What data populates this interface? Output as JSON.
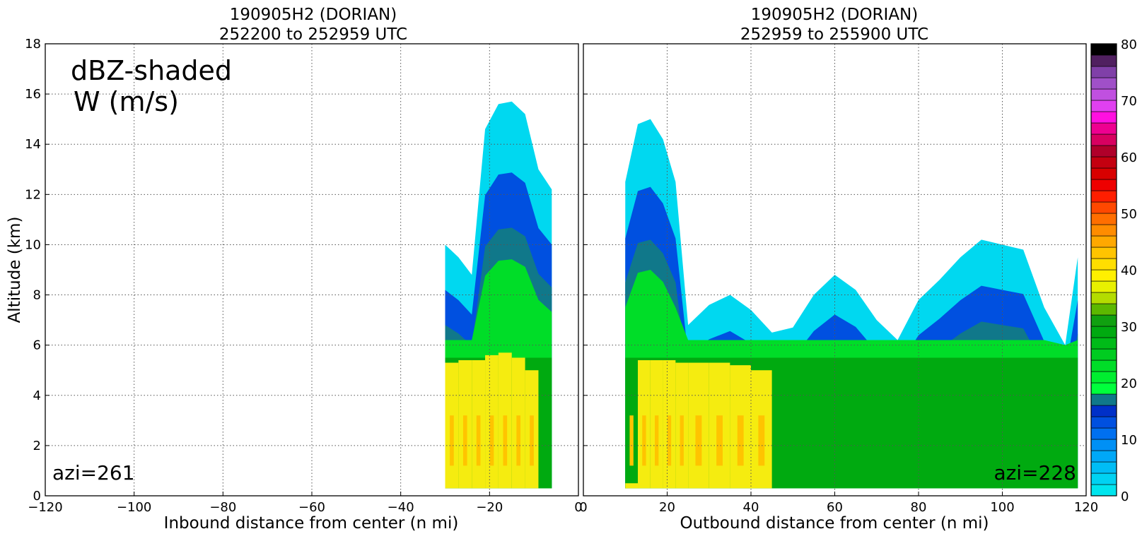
{
  "chart_data": [
    {
      "type": "heatmap",
      "title": [
        "190905H2 (DORIAN)",
        "252200 to 252959 UTC"
      ],
      "xlabel": "Inbound distance from center (n mi)",
      "ylabel": "Altitude (km)",
      "xlim": [
        -120,
        0
      ],
      "ylim": [
        0,
        18
      ],
      "xticks": [
        -120,
        -100,
        -80,
        -60,
        -40,
        -20,
        0
      ],
      "yticks": [
        0,
        2,
        4,
        6,
        8,
        10,
        12,
        14,
        16,
        18
      ],
      "annotations": [
        "dBZ-shaded",
        "W (m/s)",
        "azi=261"
      ],
      "grid": true,
      "contour_label": "1",
      "reflectivity_profile": [
        {
          "x": -30,
          "top": 10.0,
          "bright_top": 5.3
        },
        {
          "x": -27,
          "top": 9.5,
          "bright_top": 5.4
        },
        {
          "x": -24,
          "top": 8.8,
          "bright_top": 5.4
        },
        {
          "x": -21,
          "top": 14.6,
          "bright_top": 5.6
        },
        {
          "x": -18,
          "top": 15.6,
          "bright_top": 5.7
        },
        {
          "x": -15,
          "top": 15.7,
          "bright_top": 5.5
        },
        {
          "x": -12,
          "top": 15.2,
          "bright_top": 5.0
        },
        {
          "x": -9,
          "top": 13.0,
          "bright_top": 0.0
        },
        {
          "x": -6,
          "top": 12.2,
          "bright_top": 0.0
        }
      ]
    },
    {
      "type": "heatmap",
      "title": [
        "190905H2 (DORIAN)",
        "252959 to 255900 UTC"
      ],
      "xlabel": "Outbound distance from center (n mi)",
      "xlim": [
        0,
        120
      ],
      "ylim": [
        0,
        18
      ],
      "xticks": [
        0,
        20,
        40,
        60,
        80,
        100,
        120
      ],
      "annotations": [
        "azi=228"
      ],
      "grid": true,
      "contour_label": "1",
      "reflectivity_profile": [
        {
          "x": 10,
          "top": 12.5,
          "bright_top": 0.5
        },
        {
          "x": 13,
          "top": 14.8,
          "bright_top": 5.4
        },
        {
          "x": 16,
          "top": 15.0,
          "bright_top": 5.4
        },
        {
          "x": 19,
          "top": 14.2,
          "bright_top": 5.4
        },
        {
          "x": 22,
          "top": 12.5,
          "bright_top": 5.3
        },
        {
          "x": 25,
          "top": 6.8,
          "bright_top": 5.3
        },
        {
          "x": 30,
          "top": 7.6,
          "bright_top": 5.3
        },
        {
          "x": 35,
          "top": 8.0,
          "bright_top": 5.2
        },
        {
          "x": 40,
          "top": 7.4,
          "bright_top": 5.0
        },
        {
          "x": 45,
          "top": 6.5,
          "bright_top": 0.0
        },
        {
          "x": 50,
          "top": 6.7,
          "bright_top": 0.0
        },
        {
          "x": 55,
          "top": 8.0,
          "bright_top": 0.0
        },
        {
          "x": 60,
          "top": 8.8,
          "bright_top": 0.0
        },
        {
          "x": 65,
          "top": 8.2,
          "bright_top": 0.0
        },
        {
          "x": 70,
          "top": 7.0,
          "bright_top": 0.0
        },
        {
          "x": 75,
          "top": 6.2,
          "bright_top": 0.0
        },
        {
          "x": 80,
          "top": 7.8,
          "bright_top": 0.0
        },
        {
          "x": 85,
          "top": 8.6,
          "bright_top": 0.0
        },
        {
          "x": 90,
          "top": 9.5,
          "bright_top": 0.0
        },
        {
          "x": 95,
          "top": 10.2,
          "bright_top": 0.0
        },
        {
          "x": 100,
          "top": 10.0,
          "bright_top": 0.0
        },
        {
          "x": 105,
          "top": 9.8,
          "bright_top": 0.0
        },
        {
          "x": 110,
          "top": 7.5,
          "bright_top": 0.0
        },
        {
          "x": 115,
          "top": 6.0,
          "bright_top": 0.0
        },
        {
          "x": 118,
          "top": 9.5,
          "bright_top": 0.0
        }
      ]
    }
  ],
  "colorbar": {
    "min": 0,
    "max": 80,
    "step": 2.5,
    "tick_labels": [
      "0",
      "10",
      "20",
      "30",
      "40",
      "50",
      "60",
      "70",
      "80"
    ],
    "colors": [
      "#00e5ee",
      "#00d2f2",
      "#00bdf5",
      "#00a8f7",
      "#0090f5",
      "#0070f0",
      "#0050e0",
      "#0030c8",
      "#10788a",
      "#00ff3c",
      "#00ee30",
      "#00dd28",
      "#00cc20",
      "#00bb18",
      "#00aa10",
      "#10a010",
      "#5cb800",
      "#b4dc00",
      "#e8f000",
      "#fff000",
      "#ffde00",
      "#ffc400",
      "#ffa800",
      "#ff8c00",
      "#ff6e00",
      "#ff4800",
      "#ff1e00",
      "#ee0000",
      "#d80000",
      "#c40010",
      "#b0002a",
      "#d80060",
      "#ee0090",
      "#ff10e0",
      "#e040f0",
      "#c050e0",
      "#a050c8",
      "#8040a8",
      "#502060",
      "#000000"
    ]
  }
}
